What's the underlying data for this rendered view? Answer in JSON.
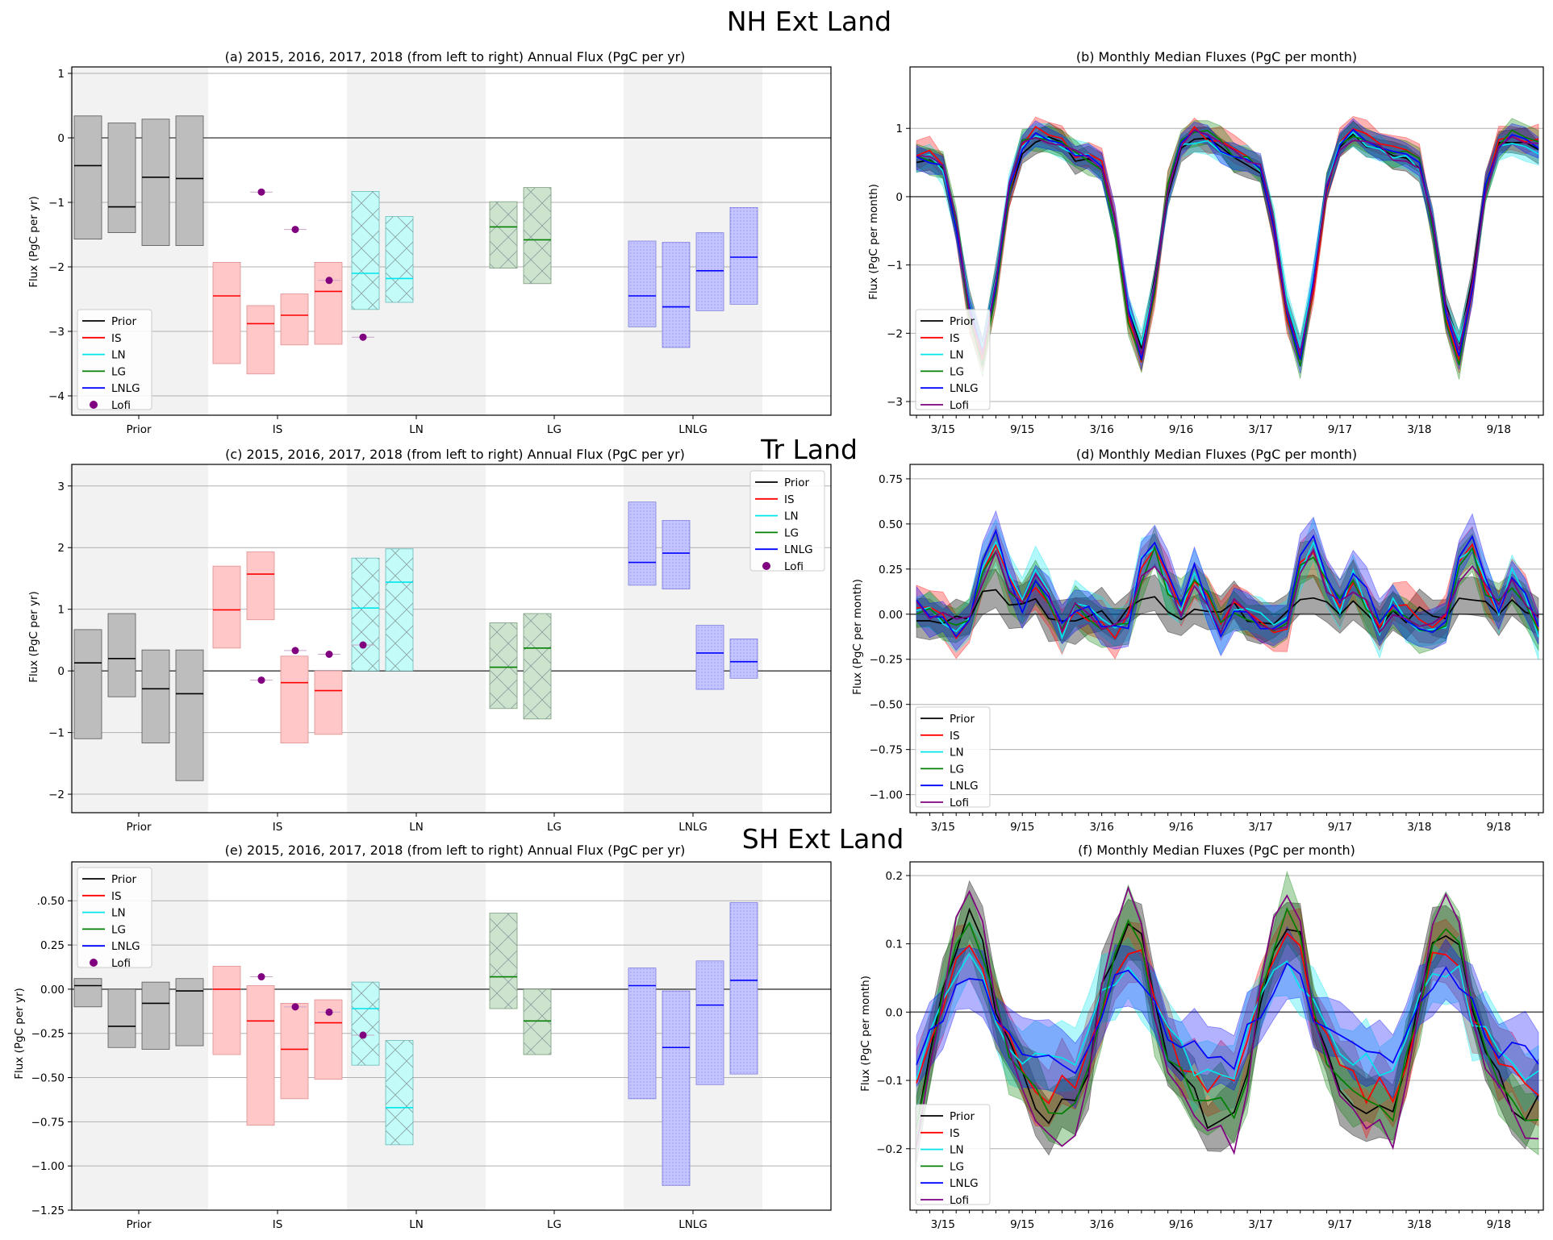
{
  "colors": {
    "Prior": "#000000",
    "IS": "#ff0000",
    "LN": "#00e5ee",
    "LG": "#008000",
    "LNLG": "#0000ff",
    "Lofi": "#800080"
  },
  "series_names": [
    "Prior",
    "IS",
    "LN",
    "LG",
    "LNLG",
    "Lofi"
  ],
  "chart_data": [
    {
      "id": "nh_annual",
      "row": 0,
      "col": 0,
      "type": "bar",
      "region_title": "NH Ext Land",
      "title": "(a)   2015, 2016, 2017, 2018 (from left to right) Annual Flux (PgC per yr)",
      "ylabel": "Flux (PgC per yr)",
      "ylim": [
        -4.3,
        1.1
      ],
      "yticks": [
        1,
        0,
        -1,
        -2,
        -3,
        -4
      ],
      "ytick_labels": [
        "1",
        "0",
        "−1",
        "−2",
        "−3",
        "−4"
      ],
      "categories": [
        "Prior",
        "IS",
        "LN",
        "LG",
        "LNLG"
      ],
      "legend": {
        "position": "bottom-left"
      },
      "groups": [
        {
          "name": "Prior",
          "boxes": [
            {
              "low": -1.57,
              "high": 0.34,
              "median": -0.43
            },
            {
              "low": -1.47,
              "high": 0.23,
              "median": -1.07
            },
            {
              "low": -1.67,
              "high": 0.29,
              "median": -0.61
            },
            {
              "low": -1.67,
              "high": 0.34,
              "median": -0.63
            }
          ]
        },
        {
          "name": "IS",
          "boxes": [
            {
              "low": -3.5,
              "high": -1.93,
              "median": -2.45
            },
            {
              "low": -3.66,
              "high": -2.6,
              "median": -2.88
            },
            {
              "low": -3.21,
              "high": -2.42,
              "median": -2.75
            },
            {
              "low": -3.2,
              "high": -1.93,
              "median": -2.38
            }
          ]
        },
        {
          "name": "LN",
          "boxes": [
            {
              "low": -2.66,
              "high": -0.83,
              "median": -2.1
            },
            {
              "low": -2.55,
              "high": -1.22,
              "median": -2.18
            }
          ]
        },
        {
          "name": "LG",
          "boxes": [
            {
              "low": -2.02,
              "high": -0.99,
              "median": -1.38
            },
            {
              "low": -2.26,
              "high": -0.77,
              "median": -1.58
            }
          ]
        },
        {
          "name": "LNLG",
          "boxes": [
            {
              "low": -2.93,
              "high": -1.6,
              "median": -2.45
            },
            {
              "low": -3.25,
              "high": -1.62,
              "median": -2.62
            },
            {
              "low": -2.68,
              "high": -1.47,
              "median": -2.06
            },
            {
              "low": -2.58,
              "high": -1.08,
              "median": -1.85
            }
          ]
        }
      ],
      "lofi": [
        -0.84,
        -1.42,
        -2.21,
        -3.09
      ]
    },
    {
      "id": "nh_monthly",
      "row": 0,
      "col": 1,
      "type": "line",
      "title": "(b)  Monthly Median Fluxes (PgC per month)",
      "ylabel": "Flux (PgC per month)",
      "ylim": [
        -3.2,
        1.9
      ],
      "yticks": [
        1,
        0,
        -1,
        -2,
        -3
      ],
      "ytick_labels": [
        "1",
        "0",
        "−1",
        "−2",
        "−3"
      ],
      "x": [
        "3/15",
        "9/15",
        "3/16",
        "9/16",
        "3/17",
        "9/17",
        "3/18",
        "9/18"
      ],
      "legend": {
        "position": "bottom-left"
      },
      "pattern": [
        0.62,
        0.58,
        0.45,
        -0.4,
        -1.7,
        -2.3,
        -1.3,
        0.1,
        0.75,
        0.9,
        0.85,
        0.75
      ],
      "scale": {
        "Prior": 0.95,
        "IS": 1.05,
        "LN": 0.95,
        "LG": 1.05,
        "LNLG": 1.0,
        "Lofi": 1.0
      },
      "band": 0.2
    },
    {
      "id": "tr_annual",
      "row": 1,
      "col": 0,
      "type": "bar",
      "region_title": "Tr Land",
      "title": "(c)   2015, 2016, 2017, 2018 (from left to right) Annual Flux (PgC per yr)",
      "ylabel": "Flux (PgC per yr)",
      "ylim": [
        -2.3,
        3.35
      ],
      "yticks": [
        3,
        2,
        1,
        0,
        -1,
        -2
      ],
      "ytick_labels": [
        "3",
        "2",
        "1",
        "0",
        "−1",
        "−2"
      ],
      "categories": [
        "Prior",
        "IS",
        "LN",
        "LG",
        "LNLG"
      ],
      "legend": {
        "position": "top-right"
      },
      "groups": [
        {
          "name": "Prior",
          "boxes": [
            {
              "low": -1.1,
              "high": 0.67,
              "median": 0.13
            },
            {
              "low": -0.42,
              "high": 0.93,
              "median": 0.2
            },
            {
              "low": -1.17,
              "high": 0.34,
              "median": -0.29
            },
            {
              "low": -1.78,
              "high": 0.34,
              "median": -0.37
            }
          ]
        },
        {
          "name": "IS",
          "boxes": [
            {
              "low": 0.37,
              "high": 1.7,
              "median": 0.99
            },
            {
              "low": 0.83,
              "high": 1.93,
              "median": 1.57
            },
            {
              "low": -1.17,
              "high": 0.24,
              "median": -0.19
            },
            {
              "low": -1.03,
              "high": 0.0,
              "median": -0.32
            }
          ]
        },
        {
          "name": "LN",
          "boxes": [
            {
              "low": 0.0,
              "high": 1.83,
              "median": 1.02
            },
            {
              "low": 0.0,
              "high": 1.98,
              "median": 1.44
            }
          ]
        },
        {
          "name": "LG",
          "boxes": [
            {
              "low": -0.61,
              "high": 0.78,
              "median": 0.06
            },
            {
              "low": -0.78,
              "high": 0.93,
              "median": 0.37
            }
          ]
        },
        {
          "name": "LNLG",
          "boxes": [
            {
              "low": 1.39,
              "high": 2.74,
              "median": 1.76
            },
            {
              "low": 1.33,
              "high": 2.44,
              "median": 1.91
            },
            {
              "low": -0.3,
              "high": 0.74,
              "median": 0.29
            },
            {
              "low": -0.12,
              "high": 0.52,
              "median": 0.15
            }
          ]
        }
      ],
      "lofi": [
        -0.15,
        0.33,
        0.27,
        0.42
      ]
    },
    {
      "id": "tr_monthly",
      "row": 1,
      "col": 1,
      "type": "line",
      "title": "(d)  Monthly Median Fluxes (PgC per month)",
      "ylabel": "Flux (PgC per month)",
      "ylim": [
        -1.1,
        0.83
      ],
      "yticks": [
        0.75,
        0.5,
        0.25,
        0.0,
        -0.25,
        -0.5,
        -0.75,
        -1.0
      ],
      "ytick_labels": [
        "0.75",
        "0.50",
        "0.25",
        "0.00",
        "−0.25",
        "−0.50",
        "−0.75",
        "−1.00"
      ],
      "x": [
        "3/15",
        "9/15",
        "3/16",
        "9/16",
        "3/17",
        "9/17",
        "3/18",
        "9/18"
      ],
      "legend": {
        "position": "bottom-left"
      },
      "pattern": [
        0.05,
        0.0,
        -0.05,
        -0.1,
        -0.05,
        0.3,
        0.45,
        0.2,
        0.05,
        0.25,
        0.1,
        -0.1
      ],
      "scale": {
        "Prior": 0.25,
        "IS": 0.8,
        "LN": 0.9,
        "LG": 0.75,
        "LNLG": 0.95,
        "Lofi": 0.7
      },
      "band": 0.12
    },
    {
      "id": "sh_annual",
      "row": 2,
      "col": 0,
      "type": "bar",
      "region_title": "SH Ext Land",
      "title": "(e)   2015, 2016, 2017, 2018 (from left to right) Annual Flux (PgC per yr)",
      "ylabel": "Flux (PgC per yr)",
      "ylim": [
        -1.25,
        0.72
      ],
      "yticks": [
        0.5,
        0.25,
        0.0,
        -0.25,
        -0.5,
        -0.75,
        -1.0,
        -1.25
      ],
      "ytick_labels": [
        ".0.50",
        "0.25",
        "0.00",
        "−0.25",
        "−0.50",
        "−0.75",
        "−1.00",
        "−1.25"
      ],
      "categories": [
        "Prior",
        "IS",
        "LN",
        "LG",
        "LNLG"
      ],
      "legend": {
        "position": "top-left"
      },
      "groups": [
        {
          "name": "Prior",
          "boxes": [
            {
              "low": -0.1,
              "high": 0.06,
              "median": 0.02
            },
            {
              "low": -0.33,
              "high": 0.0,
              "median": -0.21
            },
            {
              "low": -0.34,
              "high": 0.04,
              "median": -0.08
            },
            {
              "low": -0.32,
              "high": 0.06,
              "median": -0.01
            }
          ]
        },
        {
          "name": "IS",
          "boxes": [
            {
              "low": -0.37,
              "high": 0.13,
              "median": 0.0
            },
            {
              "low": -0.77,
              "high": 0.02,
              "median": -0.18
            },
            {
              "low": -0.62,
              "high": -0.08,
              "median": -0.34
            },
            {
              "low": -0.51,
              "high": -0.06,
              "median": -0.19
            }
          ]
        },
        {
          "name": "LN",
          "boxes": [
            {
              "low": -0.43,
              "high": 0.04,
              "median": -0.11
            },
            {
              "low": -0.88,
              "high": -0.29,
              "median": -0.67
            }
          ]
        },
        {
          "name": "LG",
          "boxes": [
            {
              "low": -0.11,
              "high": 0.43,
              "median": 0.07
            },
            {
              "low": -0.37,
              "high": 0.0,
              "median": -0.18
            }
          ]
        },
        {
          "name": "LNLG",
          "boxes": [
            {
              "low": -0.62,
              "high": 0.12,
              "median": 0.02
            },
            {
              "low": -1.11,
              "high": -0.01,
              "median": -0.33
            },
            {
              "low": -0.54,
              "high": 0.16,
              "median": -0.09
            },
            {
              "low": -0.48,
              "high": 0.49,
              "median": 0.05
            }
          ]
        }
      ],
      "lofi": [
        0.07,
        -0.1,
        -0.13,
        -0.26
      ]
    },
    {
      "id": "sh_monthly",
      "row": 2,
      "col": 1,
      "type": "line",
      "title": "(f)  Monthly Median Fluxes (PgC per month)",
      "ylabel": "Flux (PgC per month)",
      "ylim": [
        -0.29,
        0.22
      ],
      "yticks": [
        0.2,
        0.1,
        0.0,
        -0.1,
        -0.2
      ],
      "ytick_labels": [
        "0.2",
        "0.1",
        "0.0",
        "−0.1",
        "−0.2"
      ],
      "x": [
        "3/15",
        "9/15",
        "3/16",
        "9/16",
        "3/17",
        "9/17",
        "3/18",
        "9/18"
      ],
      "legend": {
        "position": "bottom-left"
      },
      "pattern": [
        -0.15,
        -0.08,
        0.02,
        0.1,
        0.13,
        0.1,
        0.0,
        -0.06,
        -0.1,
        -0.13,
        -0.15,
        -0.14
      ],
      "scale": {
        "Prior": 1.0,
        "IS": 0.75,
        "LN": 0.55,
        "LG": 1.0,
        "LNLG": 0.45,
        "Lofi": 1.25
      },
      "band": 0.05
    }
  ]
}
